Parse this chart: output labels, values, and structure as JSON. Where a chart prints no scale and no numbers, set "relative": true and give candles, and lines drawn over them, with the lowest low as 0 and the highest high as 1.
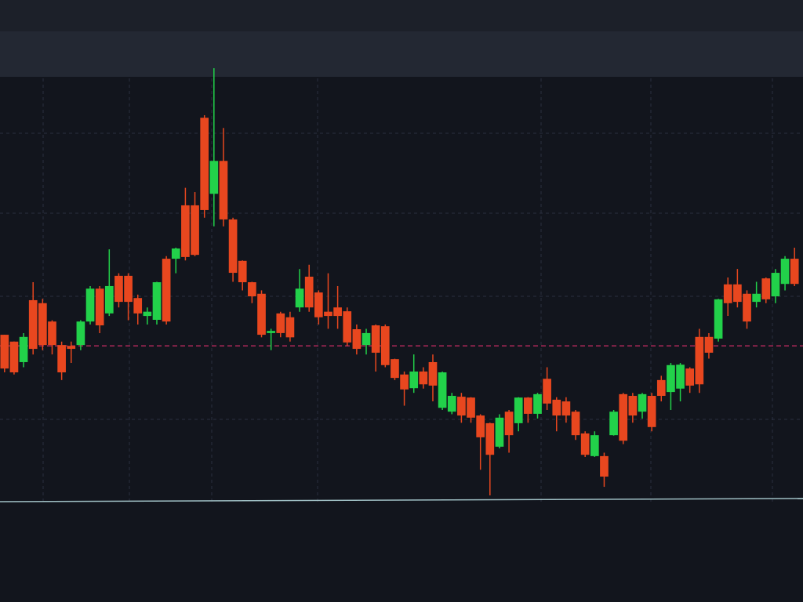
{
  "chart_data": {
    "type": "candlestick",
    "relative": true,
    "grid": true,
    "categories": [
      null,
      null,
      null,
      null,
      null,
      null,
      null,
      null,
      null,
      null,
      null,
      null,
      null,
      null,
      null,
      null,
      null,
      null,
      null,
      null,
      null,
      null,
      null,
      null,
      null,
      null,
      null,
      null,
      null,
      null,
      null,
      null,
      null,
      null,
      null,
      null,
      null,
      null,
      null,
      null,
      null,
      null,
      null,
      null,
      null,
      null,
      null,
      null,
      null,
      null,
      null,
      null,
      null,
      null,
      null,
      null,
      null,
      null,
      null,
      null,
      null,
      null,
      null,
      null,
      null,
      null,
      null,
      null,
      null,
      null,
      null,
      null,
      null,
      null,
      null,
      null,
      null,
      null,
      null,
      null,
      null,
      null,
      null,
      null
    ],
    "ohlc": [
      [
        0.376,
        0.376,
        0.288,
        0.297
      ],
      [
        0.36,
        0.36,
        0.283,
        0.288
      ],
      [
        0.312,
        0.38,
        0.3,
        0.371
      ],
      [
        0.457,
        0.499,
        0.33,
        0.343
      ],
      [
        0.45,
        0.46,
        0.34,
        0.352
      ],
      [
        0.407,
        0.41,
        0.33,
        0.352
      ],
      [
        0.352,
        0.36,
        0.27,
        0.288
      ],
      [
        0.35,
        0.36,
        0.31,
        0.343
      ],
      [
        0.352,
        0.41,
        0.34,
        0.407
      ],
      [
        0.407,
        0.49,
        0.4,
        0.484
      ],
      [
        0.484,
        0.49,
        0.38,
        0.398
      ],
      [
        0.426,
        0.576,
        0.42,
        0.49
      ],
      [
        0.514,
        0.52,
        0.44,
        0.453
      ],
      [
        0.514,
        0.52,
        0.41,
        0.453
      ],
      [
        0.462,
        0.47,
        0.4,
        0.426
      ],
      [
        0.42,
        0.44,
        0.4,
        0.43
      ],
      [
        0.411,
        0.5,
        0.4,
        0.499
      ],
      [
        0.554,
        0.56,
        0.4,
        0.407
      ],
      [
        0.554,
        0.58,
        0.52,
        0.578
      ],
      [
        0.679,
        0.72,
        0.55,
        0.558
      ],
      [
        0.679,
        0.71,
        0.56,
        0.563
      ],
      [
        0.884,
        0.89,
        0.65,
        0.668
      ],
      [
        0.706,
        1.0,
        0.63,
        0.783
      ],
      [
        0.783,
        0.86,
        0.63,
        0.646
      ],
      [
        0.646,
        0.65,
        0.5,
        0.521
      ],
      [
        0.549,
        0.55,
        0.48,
        0.499
      ],
      [
        0.499,
        0.5,
        0.45,
        0.466
      ],
      [
        0.472,
        0.48,
        0.37,
        0.376
      ],
      [
        0.38,
        0.39,
        0.34,
        0.385
      ],
      [
        0.426,
        0.43,
        0.37,
        0.38
      ],
      [
        0.417,
        0.43,
        0.36,
        0.37
      ],
      [
        0.44,
        0.53,
        0.43,
        0.484
      ],
      [
        0.512,
        0.54,
        0.43,
        0.44
      ],
      [
        0.475,
        0.48,
        0.4,
        0.417
      ],
      [
        0.43,
        0.52,
        0.39,
        0.42
      ],
      [
        0.44,
        0.49,
        0.39,
        0.42
      ],
      [
        0.431,
        0.44,
        0.35,
        0.358
      ],
      [
        0.389,
        0.4,
        0.33,
        0.343
      ],
      [
        0.352,
        0.39,
        0.33,
        0.38
      ],
      [
        0.398,
        0.4,
        0.29,
        0.334
      ],
      [
        0.396,
        0.4,
        0.3,
        0.305
      ],
      [
        0.319,
        0.32,
        0.27,
        0.275
      ],
      [
        0.283,
        0.29,
        0.21,
        0.248
      ],
      [
        0.251,
        0.33,
        0.24,
        0.29
      ],
      [
        0.29,
        0.3,
        0.25,
        0.26
      ],
      [
        0.312,
        0.33,
        0.22,
        0.257
      ],
      [
        0.205,
        0.29,
        0.2,
        0.288
      ],
      [
        0.196,
        0.24,
        0.19,
        0.233
      ],
      [
        0.231,
        0.24,
        0.17,
        0.187
      ],
      [
        0.229,
        0.23,
        0.17,
        0.182
      ],
      [
        0.187,
        0.19,
        0.06,
        0.136
      ],
      [
        0.169,
        0.17,
        0.0,
        0.095
      ],
      [
        0.114,
        0.19,
        0.11,
        0.182
      ],
      [
        0.196,
        0.2,
        0.1,
        0.141
      ],
      [
        0.169,
        0.23,
        0.15,
        0.229
      ],
      [
        0.229,
        0.23,
        0.17,
        0.191
      ],
      [
        0.191,
        0.24,
        0.18,
        0.237
      ],
      [
        0.273,
        0.3,
        0.2,
        0.215
      ],
      [
        0.224,
        0.23,
        0.15,
        0.187
      ],
      [
        0.22,
        0.23,
        0.17,
        0.187
      ],
      [
        0.196,
        0.2,
        0.13,
        0.141
      ],
      [
        0.145,
        0.15,
        0.09,
        0.095
      ],
      [
        0.092,
        0.15,
        0.09,
        0.141
      ],
      [
        0.092,
        0.1,
        0.02,
        0.044
      ],
      [
        0.141,
        0.2,
        0.14,
        0.196
      ],
      [
        0.237,
        0.24,
        0.12,
        0.128
      ],
      [
        0.233,
        0.24,
        0.17,
        0.187
      ],
      [
        0.196,
        0.24,
        0.18,
        0.237
      ],
      [
        0.233,
        0.24,
        0.15,
        0.16
      ],
      [
        0.27,
        0.28,
        0.22,
        0.233
      ],
      [
        0.242,
        0.31,
        0.2,
        0.305
      ],
      [
        0.25,
        0.31,
        0.22,
        0.306
      ],
      [
        0.297,
        0.3,
        0.24,
        0.257
      ],
      [
        0.371,
        0.39,
        0.24,
        0.26
      ],
      [
        0.371,
        0.38,
        0.32,
        0.334
      ],
      [
        0.367,
        0.46,
        0.36,
        0.459
      ],
      [
        0.494,
        0.51,
        0.42,
        0.45
      ],
      [
        0.494,
        0.53,
        0.44,
        0.453
      ],
      [
        0.472,
        0.48,
        0.39,
        0.407
      ],
      [
        0.453,
        0.5,
        0.44,
        0.472
      ],
      [
        0.508,
        0.51,
        0.45,
        0.459
      ],
      [
        0.466,
        0.53,
        0.45,
        0.521
      ],
      [
        0.495,
        0.56,
        0.48,
        0.554
      ],
      [
        0.554,
        0.58,
        0.49,
        0.495
      ]
    ],
    "colors": [
      "#e8471f",
      "#e8471f",
      "#22d14a",
      "#e8471f",
      "#e8471f",
      "#e8471f",
      "#e8471f",
      "#e8471f",
      "#22d14a",
      "#22d14a",
      "#e8471f",
      "#22d14a",
      "#e8471f",
      "#e8471f",
      "#e8471f",
      "#22d14a",
      "#22d14a",
      "#e8471f",
      "#22d14a",
      "#e8471f",
      "#e8471f",
      "#e8471f",
      "#22d14a",
      "#e8471f",
      "#e8471f",
      "#e8471f",
      "#e8471f",
      "#e8471f",
      "#22d14a",
      "#e8471f",
      "#e8471f",
      "#22d14a",
      "#e8471f",
      "#e8471f",
      "#e8471f",
      "#e8471f",
      "#e8471f",
      "#e8471f",
      "#22d14a",
      "#e8471f",
      "#e8471f",
      "#e8471f",
      "#e8471f",
      "#22d14a",
      "#e8471f",
      "#e8471f",
      "#22d14a",
      "#22d14a",
      "#e8471f",
      "#e8471f",
      "#e8471f",
      "#e8471f",
      "#22d14a",
      "#e8471f",
      "#22d14a",
      "#e8471f",
      "#22d14a",
      "#e8471f",
      "#e8471f",
      "#e8471f",
      "#e8471f",
      "#e8471f",
      "#22d14a",
      "#e8471f",
      "#22d14a",
      "#e8471f",
      "#e8471f",
      "#22d14a",
      "#e8471f",
      "#e8471f",
      "#22d14a",
      "#22d14a",
      "#e8471f",
      "#e8471f",
      "#e8471f",
      "#22d14a",
      "#e8471f",
      "#e8471f",
      "#e8471f",
      "#22d14a",
      "#e8471f",
      "#22d14a",
      "#22d14a",
      "#e8471f"
    ],
    "ref_lines": [
      {
        "axis": "y",
        "value": 0.35,
        "color": "#b0285a",
        "line_style": "dashed"
      }
    ]
  }
}
